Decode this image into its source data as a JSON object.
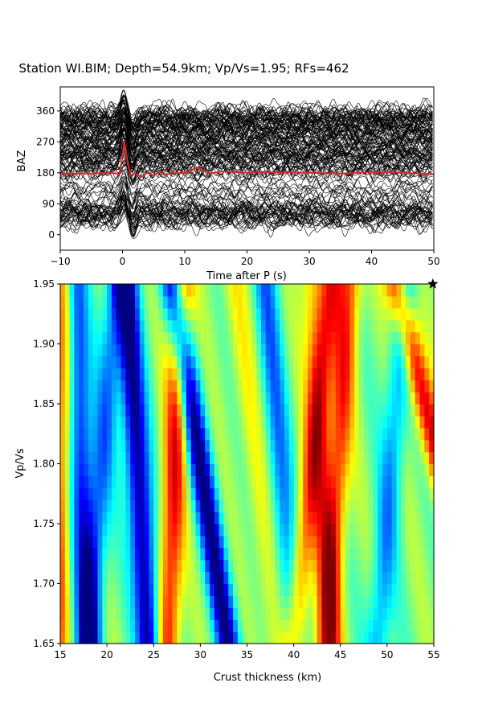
{
  "title": "Station WI.BIM; Depth=54.9km; Vp/Vs=1.95; RFs=462",
  "chart_data": [
    {
      "type": "line",
      "name": "receiver-functions",
      "xlabel": "Time after P (s)",
      "ylabel": "BAZ",
      "xlim": [
        -10,
        50
      ],
      "ylim": [
        -45,
        430
      ],
      "xticks": [
        "−10",
        "0",
        "10",
        "20",
        "30",
        "40",
        "50"
      ],
      "xtick_values": [
        -10,
        0,
        10,
        20,
        30,
        40,
        50
      ],
      "yticks": [
        "0",
        "90",
        "180",
        "270",
        "360"
      ],
      "ytick_values": [
        0,
        90,
        180,
        270,
        360
      ],
      "trace_color": "#000000",
      "stack_color": "#d62728",
      "stack": {
        "t": [
          -10,
          -5,
          -2,
          -1,
          -0.5,
          0,
          0.3,
          0.8,
          1.3,
          2,
          3,
          4,
          5,
          6,
          7,
          8,
          10,
          12,
          14,
          16,
          20,
          25,
          30,
          35,
          40,
          45,
          50
        ],
        "baz": [
          178,
          178,
          180,
          178,
          175,
          228,
          270,
          215,
          172,
          178,
          168,
          180,
          172,
          185,
          174,
          182,
          178,
          195,
          178,
          184,
          180,
          182,
          180,
          178,
          182,
          180,
          176
        ]
      }
    },
    {
      "type": "heatmap",
      "name": "h-k-stacking",
      "xlabel": "Crust thickness (km)",
      "ylabel": "Vp/Vs",
      "xlim": [
        15,
        55
      ],
      "ylim": [
        1.65,
        1.95
      ],
      "xticks": [
        "15",
        "20",
        "25",
        "30",
        "35",
        "40",
        "45",
        "50",
        "55"
      ],
      "xtick_values": [
        15,
        20,
        25,
        30,
        35,
        40,
        45,
        50,
        55
      ],
      "yticks": [
        "1.65",
        "1.70",
        "1.75",
        "1.80",
        "1.85",
        "1.90",
        "1.95"
      ],
      "ytick_values": [
        1.65,
        1.7,
        1.75,
        1.8,
        1.85,
        1.9,
        1.95
      ],
      "colormap": "jet",
      "best_fit": {
        "thickness": 54.9,
        "vpvs": 1.95
      },
      "bands": [
        {
          "h_top": 16.5,
          "h_bottom": 18.0,
          "amp": -0.75
        },
        {
          "h_top": 22.0,
          "h_bottom": 24.5,
          "amp": -1.0
        },
        {
          "h_top": 27.0,
          "h_bottom": 33.0,
          "amp": -0.95
        },
        {
          "h_top": 28.0,
          "h_bottom": 26.5,
          "amp": 0.75
        },
        {
          "h_top": 33.5,
          "h_bottom": 38.0,
          "amp": 0.25
        },
        {
          "h_top": 37.0,
          "h_bottom": 40.0,
          "amp": -0.5
        },
        {
          "h_top": 44.0,
          "h_bottom": 40.0,
          "amp": 0.6
        },
        {
          "h_top": 42.0,
          "h_bottom": 44.0,
          "amp": 0.4
        },
        {
          "h_top": 46.0,
          "h_bottom": 43.5,
          "amp": 0.65
        },
        {
          "h_top": 52.0,
          "h_bottom": 49.0,
          "amp": -0.45
        },
        {
          "h_top": 51.0,
          "h_bottom": 60.0,
          "amp": 0.85
        },
        {
          "h_top": 21.0,
          "h_bottom": 18.0,
          "amp": -0.5
        },
        {
          "h_top": 15.5,
          "h_bottom": 14.5,
          "amp": 0.6
        }
      ]
    }
  ]
}
